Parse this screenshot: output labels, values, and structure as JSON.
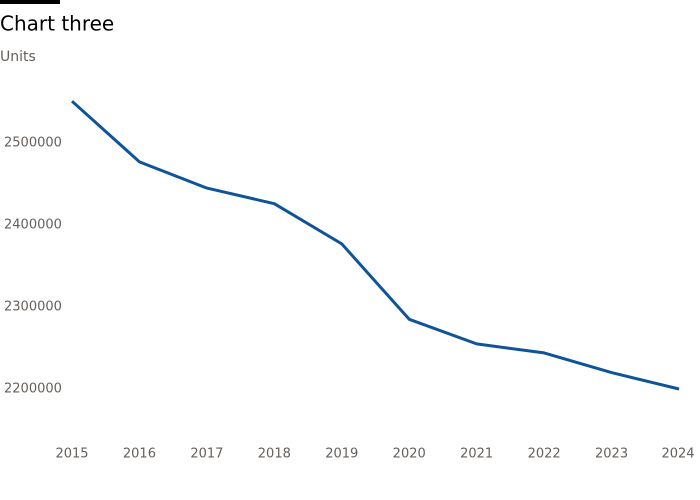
{
  "chart_data": {
    "type": "line",
    "title": "Chart three",
    "subtitle": "Units",
    "x": [
      2015,
      2016,
      2017,
      2018,
      2019,
      2020,
      2021,
      2022,
      2023,
      2024
    ],
    "series": [
      {
        "name": "Units",
        "color": "#0f5499",
        "values": [
          2551000,
          2477000,
          2445000,
          2426000,
          2377000,
          2285000,
          2255000,
          2244000,
          2220000,
          2200000
        ]
      }
    ],
    "xlim": [
      2015,
      2024
    ],
    "xticks": [
      2015,
      2016,
      2017,
      2018,
      2019,
      2020,
      2021,
      2022,
      2023,
      2024
    ],
    "ylim": [
      2150000,
      2570000
    ],
    "yticks": [
      2200000,
      2300000,
      2400000,
      2500000
    ],
    "grid": false
  }
}
